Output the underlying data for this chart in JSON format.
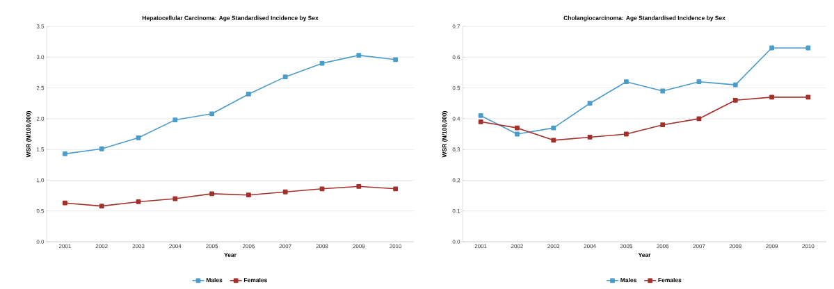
{
  "chart_data": [
    {
      "type": "line",
      "title": "Hepatocellular Carcinoma: Age Standardised Incidence by Sex",
      "xlabel": "Year",
      "ylabel": "WSR (N/100,000)",
      "categories": [
        "2001",
        "2002",
        "2003",
        "2004",
        "2005",
        "2006",
        "2007",
        "2008",
        "2009",
        "2010"
      ],
      "series": [
        {
          "name": "Males",
          "color": "#4a9cc9",
          "values": [
            1.43,
            1.51,
            1.69,
            1.98,
            2.08,
            2.4,
            2.68,
            2.9,
            3.03,
            2.96
          ]
        },
        {
          "name": "Females",
          "color": "#a3302b",
          "values": [
            0.63,
            0.58,
            0.65,
            0.7,
            0.78,
            0.76,
            0.81,
            0.86,
            0.9,
            0.86
          ]
        }
      ],
      "ylim": [
        0,
        3.5
      ],
      "yticks": [
        {
          "value": 0,
          "label": "0.0"
        },
        {
          "value": 0.5,
          "label": "0.5"
        },
        {
          "value": 1,
          "label": "1.0"
        },
        {
          "value": 1.5,
          "label": "1.5"
        },
        {
          "value": 2,
          "label": "2.0"
        },
        {
          "value": 2.5,
          "label": "2.5"
        },
        {
          "value": 3,
          "label": "3.0"
        },
        {
          "value": 3.5,
          "label": "3.5"
        }
      ],
      "grid": "y",
      "legend": "bottom",
      "marker": "square",
      "line_style": "solid"
    },
    {
      "type": "line",
      "title": "Cholangiocarcinoma: Age Standardised Incidence by Sex",
      "xlabel": "Year",
      "ylabel": "WSR (N/100,000)",
      "categories": [
        "2001",
        "2002",
        "2003",
        "2004",
        "2005",
        "2006",
        "2007",
        "2008",
        "2009",
        "2010"
      ],
      "series": [
        {
          "name": "Males",
          "color": "#4a9cc9",
          "values": [
            0.41,
            0.35,
            0.37,
            0.45,
            0.52,
            0.49,
            0.52,
            0.51,
            0.63,
            0.63
          ]
        },
        {
          "name": "Females",
          "color": "#a3302b",
          "values": [
            0.39,
            0.37,
            0.33,
            0.34,
            0.35,
            0.38,
            0.4,
            0.46,
            0.47,
            0.47
          ]
        }
      ],
      "ylim": [
        0,
        0.7
      ],
      "yticks": [
        {
          "value": 0,
          "label": "0.0"
        },
        {
          "value": 0.1,
          "label": "0.1"
        },
        {
          "value": 0.2,
          "label": "0.2"
        },
        {
          "value": 0.3,
          "label": "0.3"
        },
        {
          "value": 0.4,
          "label": "0.4"
        },
        {
          "value": 0.5,
          "label": "0.5"
        },
        {
          "value": 0.6,
          "label": "0.6"
        },
        {
          "value": 0.7,
          "label": "0.7"
        }
      ],
      "grid": "y",
      "legend": "bottom",
      "marker": "square",
      "line_style": "solid"
    }
  ]
}
